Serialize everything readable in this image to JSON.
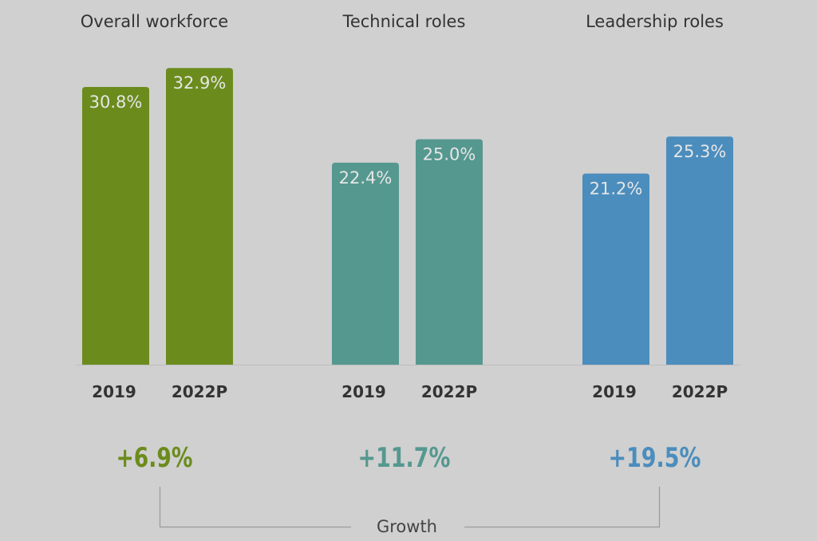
{
  "chart_data": {
    "type": "bar",
    "ylim": [
      0,
      40
    ],
    "grid": false,
    "groups": [
      {
        "title": "Overall workforce",
        "color": "#6b8c1c",
        "categories": [
          "2019",
          "2022P"
        ],
        "values": [
          30.8,
          32.9
        ],
        "labels": [
          "30.8%",
          "32.9%"
        ],
        "growth": "+6.9%"
      },
      {
        "title": "Technical roles",
        "color": "#55988f",
        "categories": [
          "2019",
          "2022P"
        ],
        "values": [
          22.4,
          25.0
        ],
        "labels": [
          "22.4%",
          "25.0%"
        ],
        "growth": "+11.7%"
      },
      {
        "title": "Leadership roles",
        "color": "#4b8dbd",
        "categories": [
          "2019",
          "2022P"
        ],
        "values": [
          21.2,
          25.3
        ],
        "labels": [
          "21.2%",
          "25.3%"
        ],
        "growth": "+19.5%"
      }
    ],
    "annotation": "Growth"
  }
}
